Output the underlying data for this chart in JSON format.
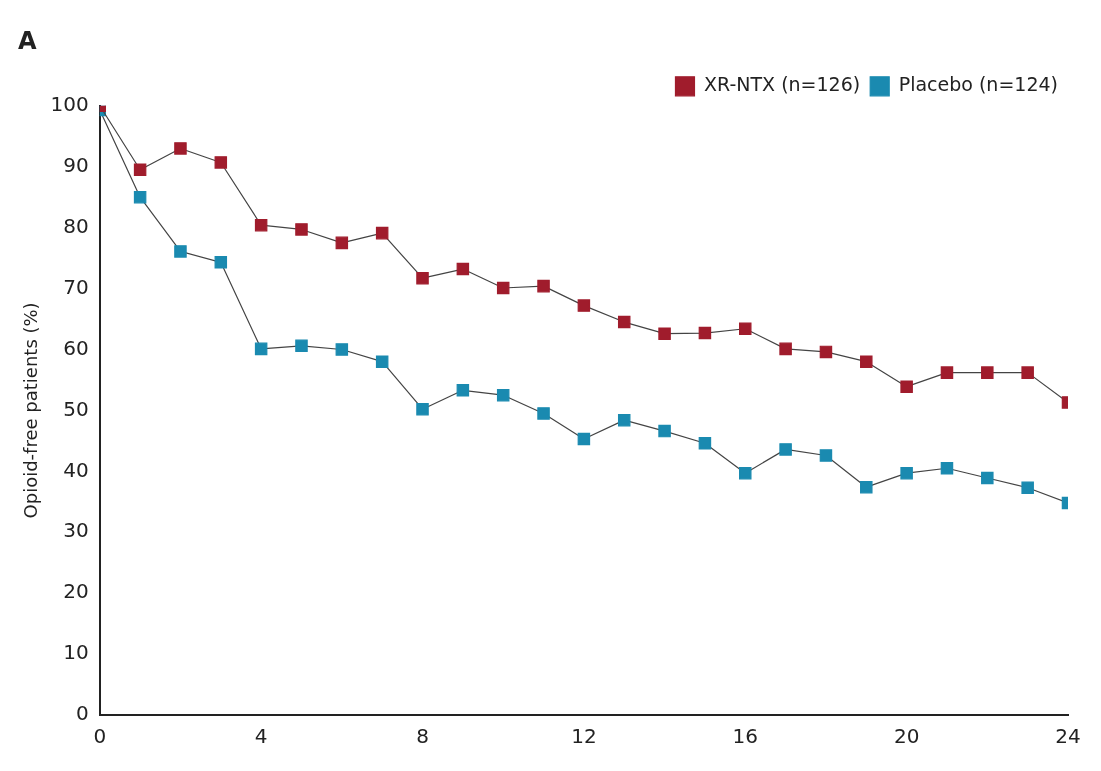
{
  "chart_data": {
    "type": "line",
    "title": "A",
    "ylabel": "Opioid-free patients (%)",
    "x": [
      0,
      1,
      2,
      3,
      4,
      5,
      6,
      7,
      8,
      9,
      10,
      11,
      12,
      13,
      14,
      15,
      16,
      17,
      18,
      19,
      20,
      21,
      22,
      23,
      24
    ],
    "series": [
      {
        "name": "XR-NTX (n=126)",
        "color": "#a01c2c",
        "values": [
          100,
          89.5,
          93,
          90.7,
          80.4,
          79.7,
          77.5,
          79.1,
          71.7,
          73.2,
          70.1,
          70.4,
          67.2,
          64.5,
          62.6,
          62.7,
          63.4,
          60.1,
          59.6,
          58,
          53.9,
          56.2,
          56.2,
          56.2,
          51.3
        ]
      },
      {
        "name": "Placebo (n=124)",
        "color": "#1a8ab0",
        "values": [
          99.3,
          85,
          76.1,
          74.3,
          60.1,
          60.6,
          60,
          58,
          50.2,
          53.3,
          52.5,
          49.5,
          45.3,
          48.4,
          46.6,
          44.6,
          39.7,
          43.6,
          42.6,
          37.4,
          39.7,
          40.5,
          38.9,
          37.3,
          34.8
        ]
      }
    ],
    "xlim": [
      0,
      24
    ],
    "xticks": [
      0,
      4,
      8,
      12,
      16,
      20,
      24
    ],
    "ylim": [
      0,
      100
    ],
    "yticks": [
      0,
      10,
      20,
      30,
      40,
      50,
      60,
      70,
      80,
      90,
      100
    ],
    "grid": false,
    "legend": "top right",
    "marker": "square",
    "line_style": "solid"
  }
}
